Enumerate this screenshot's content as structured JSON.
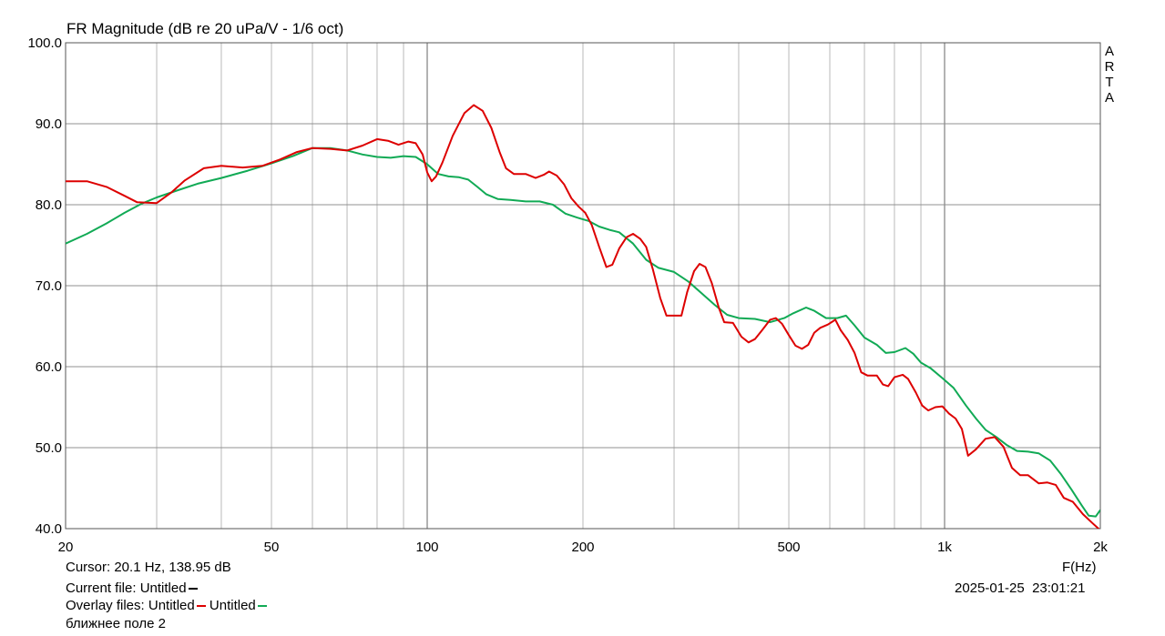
{
  "chart_data": {
    "type": "line",
    "title": "FR Magnitude (dB re 20 uPa/V - 1/6 oct)",
    "xlabel": "F(Hz)",
    "ylabel": "",
    "xscale": "log",
    "xlim": [
      20,
      2000
    ],
    "ylim": [
      40,
      100
    ],
    "grid": true,
    "x_ticks": [
      {
        "value": 20,
        "label": "20"
      },
      {
        "value": 50,
        "label": "50"
      },
      {
        "value": 100,
        "label": "100"
      },
      {
        "value": 200,
        "label": "200"
      },
      {
        "value": 500,
        "label": "500"
      },
      {
        "value": 1000,
        "label": "1k"
      },
      {
        "value": 2000,
        "label": "2k"
      }
    ],
    "y_ticks": [
      {
        "value": 100,
        "label": "100.0"
      },
      {
        "value": 90,
        "label": "90.0"
      },
      {
        "value": 80,
        "label": "80.0"
      },
      {
        "value": 70,
        "label": "70.0"
      },
      {
        "value": 60,
        "label": "60.0"
      },
      {
        "value": 50,
        "label": "50.0"
      },
      {
        "value": 40,
        "label": "40.0"
      }
    ],
    "series": [
      {
        "name": "Untitled",
        "color": "#dd0000",
        "points": [
          [
            20,
            82.9
          ],
          [
            22,
            82.9
          ],
          [
            24,
            82.2
          ],
          [
            26,
            81.1
          ],
          [
            27.5,
            80.3
          ],
          [
            30,
            80.2
          ],
          [
            32,
            81.5
          ],
          [
            34,
            83.0
          ],
          [
            37,
            84.5
          ],
          [
            40,
            84.8
          ],
          [
            44,
            84.6
          ],
          [
            48,
            84.8
          ],
          [
            52,
            85.6
          ],
          [
            56,
            86.5
          ],
          [
            60,
            87.0
          ],
          [
            65,
            86.9
          ],
          [
            70,
            86.7
          ],
          [
            75,
            87.3
          ],
          [
            80,
            88.1
          ],
          [
            84,
            87.9
          ],
          [
            88,
            87.4
          ],
          [
            92,
            87.8
          ],
          [
            95,
            87.6
          ],
          [
            98,
            86.2
          ],
          [
            100,
            84.0
          ],
          [
            102,
            82.9
          ],
          [
            104,
            83.5
          ],
          [
            107,
            85.2
          ],
          [
            112,
            88.5
          ],
          [
            118,
            91.3
          ],
          [
            123,
            92.3
          ],
          [
            128,
            91.6
          ],
          [
            133,
            89.5
          ],
          [
            138,
            86.5
          ],
          [
            142,
            84.5
          ],
          [
            147,
            83.8
          ],
          [
            155,
            83.8
          ],
          [
            162,
            83.3
          ],
          [
            168,
            83.7
          ],
          [
            172,
            84.1
          ],
          [
            178,
            83.6
          ],
          [
            184,
            82.5
          ],
          [
            190,
            80.8
          ],
          [
            196,
            79.8
          ],
          [
            202,
            79.0
          ],
          [
            208,
            77.5
          ],
          [
            215,
            74.8
          ],
          [
            222,
            72.3
          ],
          [
            228,
            72.6
          ],
          [
            235,
            74.6
          ],
          [
            243,
            76.0
          ],
          [
            250,
            76.4
          ],
          [
            258,
            75.8
          ],
          [
            265,
            74.8
          ],
          [
            273,
            72.0
          ],
          [
            282,
            68.5
          ],
          [
            290,
            66.3
          ],
          [
            302,
            66.3
          ],
          [
            310,
            66.3
          ],
          [
            318,
            69.2
          ],
          [
            328,
            71.8
          ],
          [
            336,
            72.7
          ],
          [
            345,
            72.3
          ],
          [
            355,
            70.3
          ],
          [
            366,
            67.3
          ],
          [
            375,
            65.5
          ],
          [
            390,
            65.4
          ],
          [
            405,
            63.7
          ],
          [
            418,
            63.0
          ],
          [
            430,
            63.4
          ],
          [
            445,
            64.6
          ],
          [
            460,
            65.8
          ],
          [
            472,
            66.0
          ],
          [
            485,
            65.3
          ],
          [
            500,
            63.9
          ],
          [
            515,
            62.6
          ],
          [
            530,
            62.2
          ],
          [
            545,
            62.7
          ],
          [
            560,
            64.2
          ],
          [
            575,
            64.8
          ],
          [
            595,
            65.2
          ],
          [
            615,
            65.8
          ],
          [
            630,
            64.5
          ],
          [
            650,
            63.3
          ],
          [
            670,
            61.7
          ],
          [
            690,
            59.3
          ],
          [
            710,
            58.9
          ],
          [
            740,
            58.9
          ],
          [
            760,
            57.8
          ],
          [
            778,
            57.6
          ],
          [
            800,
            58.7
          ],
          [
            830,
            59.0
          ],
          [
            850,
            58.5
          ],
          [
            880,
            56.8
          ],
          [
            905,
            55.2
          ],
          [
            930,
            54.6
          ],
          [
            960,
            55.0
          ],
          [
            990,
            55.1
          ],
          [
            1020,
            54.2
          ],
          [
            1050,
            53.6
          ],
          [
            1080,
            52.3
          ],
          [
            1110,
            49.0
          ],
          [
            1150,
            49.8
          ],
          [
            1200,
            51.1
          ],
          [
            1250,
            51.3
          ],
          [
            1300,
            50.1
          ],
          [
            1350,
            47.5
          ],
          [
            1400,
            46.6
          ],
          [
            1450,
            46.6
          ],
          [
            1520,
            45.6
          ],
          [
            1580,
            45.7
          ],
          [
            1640,
            45.4
          ],
          [
            1700,
            43.8
          ],
          [
            1770,
            43.3
          ],
          [
            1850,
            41.8
          ],
          [
            1930,
            40.7
          ],
          [
            2000,
            39.8
          ]
        ]
      },
      {
        "name": "Untitled",
        "color": "#11aa55",
        "points": [
          [
            20,
            75.2
          ],
          [
            22,
            76.4
          ],
          [
            24,
            77.7
          ],
          [
            26,
            79.0
          ],
          [
            28,
            80.1
          ],
          [
            30,
            80.9
          ],
          [
            33,
            81.8
          ],
          [
            36,
            82.6
          ],
          [
            40,
            83.3
          ],
          [
            45,
            84.2
          ],
          [
            50,
            85.1
          ],
          [
            55,
            86.0
          ],
          [
            60,
            87.0
          ],
          [
            65,
            87.0
          ],
          [
            70,
            86.7
          ],
          [
            75,
            86.2
          ],
          [
            80,
            85.9
          ],
          [
            85,
            85.8
          ],
          [
            90,
            86.0
          ],
          [
            95,
            85.9
          ],
          [
            100,
            85.0
          ],
          [
            105,
            83.8
          ],
          [
            110,
            83.5
          ],
          [
            115,
            83.4
          ],
          [
            120,
            83.1
          ],
          [
            125,
            82.2
          ],
          [
            130,
            81.3
          ],
          [
            137,
            80.7
          ],
          [
            145,
            80.6
          ],
          [
            155,
            80.4
          ],
          [
            165,
            80.4
          ],
          [
            175,
            80.0
          ],
          [
            185,
            78.9
          ],
          [
            195,
            78.4
          ],
          [
            205,
            78.0
          ],
          [
            215,
            77.3
          ],
          [
            225,
            76.9
          ],
          [
            235,
            76.6
          ],
          [
            250,
            75.2
          ],
          [
            265,
            73.2
          ],
          [
            280,
            72.2
          ],
          [
            300,
            71.7
          ],
          [
            320,
            70.5
          ],
          [
            340,
            69.0
          ],
          [
            360,
            67.6
          ],
          [
            380,
            66.4
          ],
          [
            400,
            66.0
          ],
          [
            430,
            65.9
          ],
          [
            460,
            65.5
          ],
          [
            490,
            66.0
          ],
          [
            510,
            66.6
          ],
          [
            540,
            67.3
          ],
          [
            560,
            66.9
          ],
          [
            590,
            66.0
          ],
          [
            620,
            66.0
          ],
          [
            645,
            66.3
          ],
          [
            670,
            65.1
          ],
          [
            700,
            63.6
          ],
          [
            740,
            62.7
          ],
          [
            770,
            61.7
          ],
          [
            800,
            61.8
          ],
          [
            840,
            62.3
          ],
          [
            870,
            61.6
          ],
          [
            900,
            60.5
          ],
          [
            940,
            59.8
          ],
          [
            990,
            58.6
          ],
          [
            1040,
            57.4
          ],
          [
            1100,
            55.2
          ],
          [
            1150,
            53.6
          ],
          [
            1200,
            52.2
          ],
          [
            1260,
            51.3
          ],
          [
            1320,
            50.3
          ],
          [
            1380,
            49.6
          ],
          [
            1450,
            49.5
          ],
          [
            1520,
            49.3
          ],
          [
            1600,
            48.4
          ],
          [
            1680,
            46.7
          ],
          [
            1760,
            44.8
          ],
          [
            1840,
            42.9
          ],
          [
            1900,
            41.6
          ],
          [
            1960,
            41.5
          ],
          [
            2000,
            42.3
          ]
        ]
      }
    ],
    "annotations": {
      "cursor": "Cursor: 20.1 Hz, 138.95 dB",
      "current_file_label": "Current file: Untitled",
      "overlay_files_label": "Overlay files:",
      "overlay_file_1": "Untitled",
      "overlay_file_2": "Untitled",
      "date": "2025-01-25",
      "time": "23:01:21",
      "note": "ближнее поле 2",
      "watermark": [
        "A",
        "R",
        "T",
        "A"
      ]
    }
  },
  "colors": {
    "current_file": "#000000",
    "overlay_1": "#dd0000",
    "overlay_2": "#11aa55",
    "grid": "#a8a8a8"
  }
}
